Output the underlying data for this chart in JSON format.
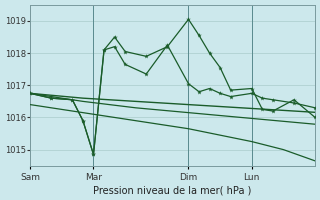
{
  "xlabel": "Pression niveau de la mer( hPa )",
  "bg_color": "#cce8ec",
  "grid_color": "#aacccc",
  "line_color": "#1a5c2a",
  "vline_color": "#5a8a8e",
  "xtick_labels": [
    "Sam",
    "Mar",
    "Dim",
    "Lun"
  ],
  "xtick_positions": [
    0,
    6,
    15,
    21
  ],
  "vline_positions": [
    0,
    6,
    15,
    21
  ],
  "ylim": [
    1014.5,
    1019.5
  ],
  "xlim": [
    0,
    27
  ],
  "yticks": [
    1015,
    1016,
    1017,
    1018,
    1019
  ],
  "series1_nomarker": {
    "x": [
      0,
      1,
      2,
      3,
      4,
      5,
      6,
      7,
      8,
      9,
      10,
      11,
      12,
      13,
      14,
      15,
      16,
      17,
      18,
      19,
      20,
      21,
      22,
      23,
      24,
      25,
      26,
      27
    ],
    "y": [
      1016.75,
      1016.72,
      1016.69,
      1016.66,
      1016.63,
      1016.6,
      1016.58,
      1016.56,
      1016.54,
      1016.52,
      1016.5,
      1016.48,
      1016.46,
      1016.44,
      1016.42,
      1016.4,
      1016.38,
      1016.36,
      1016.34,
      1016.32,
      1016.3,
      1016.28,
      1016.26,
      1016.24,
      1016.22,
      1016.2,
      1016.18,
      1016.16
    ]
  },
  "series2_nomarker": {
    "x": [
      0,
      1,
      2,
      3,
      4,
      5,
      6,
      7,
      8,
      9,
      10,
      11,
      12,
      13,
      14,
      15,
      16,
      17,
      18,
      19,
      20,
      21,
      22,
      23,
      24,
      25,
      26,
      27
    ],
    "y": [
      1016.75,
      1016.7,
      1016.65,
      1016.6,
      1016.55,
      1016.5,
      1016.46,
      1016.42,
      1016.38,
      1016.34,
      1016.3,
      1016.27,
      1016.24,
      1016.21,
      1016.18,
      1016.15,
      1016.12,
      1016.09,
      1016.06,
      1016.03,
      1016.0,
      1015.97,
      1015.94,
      1015.91,
      1015.88,
      1015.85,
      1015.82,
      1015.79
    ]
  },
  "series3": {
    "x": [
      0,
      2,
      4,
      5,
      6,
      7,
      8,
      9,
      11,
      13,
      15,
      16,
      17,
      18,
      19,
      21,
      22,
      23,
      25,
      27
    ],
    "y": [
      1016.75,
      1016.6,
      1016.55,
      1015.9,
      1014.85,
      1018.1,
      1018.5,
      1018.05,
      1017.9,
      1018.2,
      1019.05,
      1018.55,
      1018.0,
      1017.55,
      1016.85,
      1016.9,
      1016.25,
      1016.2,
      1016.55,
      1016.0
    ]
  },
  "series4": {
    "x": [
      0,
      2,
      4,
      5,
      6,
      7,
      8,
      9,
      11,
      13,
      15,
      16,
      17,
      18,
      19,
      21,
      22,
      23,
      25,
      27
    ],
    "y": [
      1016.75,
      1016.6,
      1016.55,
      1015.9,
      1014.85,
      1018.1,
      1018.2,
      1017.65,
      1017.35,
      1018.25,
      1017.05,
      1016.8,
      1016.9,
      1016.75,
      1016.65,
      1016.75,
      1016.6,
      1016.55,
      1016.45,
      1016.3
    ]
  },
  "series5_declining": {
    "x": [
      0,
      3,
      6,
      9,
      12,
      15,
      18,
      21,
      24,
      27
    ],
    "y": [
      1016.4,
      1016.25,
      1016.1,
      1015.95,
      1015.8,
      1015.65,
      1015.45,
      1015.25,
      1015.0,
      1014.65
    ]
  }
}
